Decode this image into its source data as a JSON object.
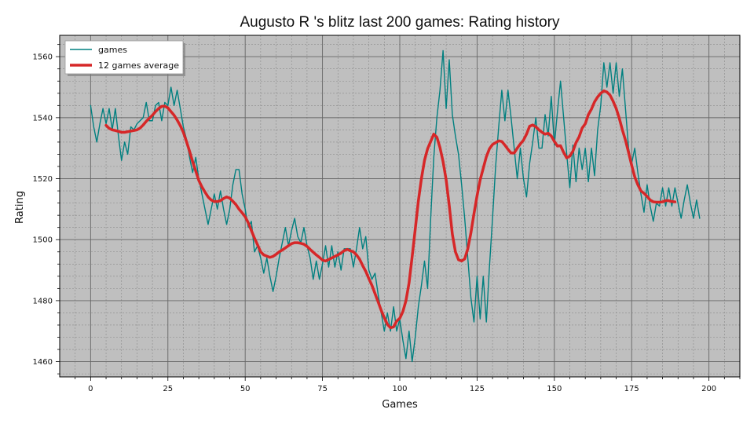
{
  "chart_data": {
    "type": "line",
    "title": "Augusto R 's blitz last 200 games: Rating history",
    "xlabel": "Games",
    "ylabel": "Rating",
    "xlim": [
      -10,
      210
    ],
    "ylim": [
      1455,
      1567
    ],
    "x_ticks": [
      0,
      25,
      50,
      75,
      100,
      125,
      150,
      175,
      200
    ],
    "y_ticks": [
      1460,
      1480,
      1500,
      1520,
      1540,
      1560
    ],
    "grid": true,
    "legend_position": "top-left",
    "background_color": "#bfbfbf",
    "series": [
      {
        "name": "games",
        "color": "#008080",
        "x_start": 0,
        "values": [
          1544,
          1537,
          1532,
          1538,
          1543,
          1538,
          1543,
          1536,
          1543,
          1534,
          1526,
          1532,
          1528,
          1537,
          1536,
          1538,
          1539,
          1540,
          1545,
          1539,
          1539,
          1544,
          1545,
          1539,
          1545,
          1544,
          1550,
          1544,
          1549,
          1543,
          1537,
          1533,
          1527,
          1522,
          1527,
          1520,
          1515,
          1510,
          1505,
          1510,
          1515,
          1510,
          1516,
          1510,
          1505,
          1510,
          1518,
          1523,
          1523,
          1515,
          1510,
          1504,
          1506,
          1496,
          1498,
          1494,
          1489,
          1494,
          1488,
          1483,
          1488,
          1494,
          1499,
          1504,
          1498,
          1503,
          1507,
          1501,
          1499,
          1504,
          1498,
          1494,
          1487,
          1493,
          1487,
          1492,
          1498,
          1491,
          1498,
          1491,
          1496,
          1490,
          1497,
          1497,
          1497,
          1491,
          1497,
          1504,
          1497,
          1501,
          1490,
          1487,
          1489,
          1482,
          1476,
          1470,
          1476,
          1470,
          1478,
          1470,
          1474,
          1467,
          1461,
          1470,
          1460,
          1468,
          1478,
          1485,
          1493,
          1484,
          1507,
          1527,
          1540,
          1549,
          1562,
          1543,
          1559,
          1541,
          1534,
          1528,
          1518,
          1507,
          1494,
          1481,
          1473,
          1488,
          1474,
          1488,
          1473,
          1491,
          1507,
          1524,
          1537,
          1549,
          1539,
          1549,
          1540,
          1530,
          1520,
          1530,
          1520,
          1514,
          1525,
          1532,
          1540,
          1530,
          1530,
          1541,
          1534,
          1547,
          1531,
          1542,
          1552,
          1540,
          1528,
          1517,
          1531,
          1519,
          1530,
          1523,
          1530,
          1519,
          1530,
          1521,
          1536,
          1544,
          1558,
          1550,
          1558,
          1548,
          1558,
          1547,
          1556,
          1543,
          1530,
          1525,
          1530,
          1522,
          1515,
          1509,
          1518,
          1511,
          1506,
          1512,
          1511,
          1517,
          1511,
          1517,
          1511,
          1517,
          1512,
          1507,
          1513,
          1518,
          1512,
          1507,
          1513,
          1507
        ]
      },
      {
        "name": "12 games average",
        "color": "#d62728",
        "x_start": 5,
        "values": [
          1537.5,
          1536.5,
          1536,
          1535.8,
          1535.5,
          1535.2,
          1535.2,
          1535.4,
          1535.6,
          1535.8,
          1536,
          1536.6,
          1537.6,
          1538.8,
          1539.8,
          1540.8,
          1542,
          1543,
          1543.7,
          1543.8,
          1543.2,
          1542,
          1540.8,
          1539.2,
          1537.4,
          1535.2,
          1532.2,
          1529,
          1525.6,
          1522.5,
          1519.4,
          1517.3,
          1515.6,
          1514,
          1513,
          1512.5,
          1512.5,
          1512.8,
          1513.5,
          1514,
          1513.6,
          1512.6,
          1511.5,
          1510,
          1508.8,
          1507.5,
          1505.5,
          1503,
          1500.5,
          1498.3,
          1496,
          1495,
          1494.6,
          1494.2,
          1494.5,
          1495.2,
          1496,
          1496.6,
          1497.3,
          1498,
          1498.7,
          1499,
          1499,
          1498.8,
          1498.5,
          1497.8,
          1496.8,
          1495.9,
          1495,
          1494.2,
          1493.3,
          1493,
          1493.5,
          1494,
          1494.5,
          1495,
          1495.6,
          1496.4,
          1496.8,
          1496.4,
          1496,
          1495,
          1493.6,
          1491.5,
          1489.6,
          1487.2,
          1485,
          1482.3,
          1479.6,
          1476.8,
          1474.4,
          1472.2,
          1471.1,
          1471.4,
          1473.3,
          1474.2,
          1476.4,
          1480,
          1485.8,
          1494.4,
          1503.4,
          1512.6,
          1520,
          1526,
          1529.8,
          1532.2,
          1534.6,
          1533.6,
          1530.2,
          1525.6,
          1519.6,
          1511.2,
          1501.8,
          1496,
          1493.4,
          1493,
          1493.7,
          1497,
          1502.2,
          1508.5,
          1514.4,
          1519.6,
          1523.4,
          1527.2,
          1529.8,
          1531.2,
          1531.8,
          1532.4,
          1532.2,
          1531,
          1529.6,
          1528.4,
          1528.4,
          1530,
          1531.4,
          1532.6,
          1534.6,
          1537.2,
          1537.6,
          1537,
          1536,
          1535.2,
          1534.6,
          1534.9,
          1534,
          1532.2,
          1530.7,
          1530.8,
          1528.6,
          1526.8,
          1527.4,
          1529,
          1531.8,
          1533.7,
          1536.6,
          1538,
          1541,
          1542.8,
          1545.2,
          1546.8,
          1548,
          1548.8,
          1548.4,
          1547.4,
          1545.4,
          1543,
          1539.8,
          1536,
          1532.6,
          1528.6,
          1524.4,
          1520.6,
          1518,
          1516,
          1515.2,
          1514.2,
          1513,
          1512.4,
          1512.3,
          1512.3,
          1512.4,
          1512.8,
          1512.8,
          1512.5,
          1512.4
        ]
      }
    ]
  }
}
